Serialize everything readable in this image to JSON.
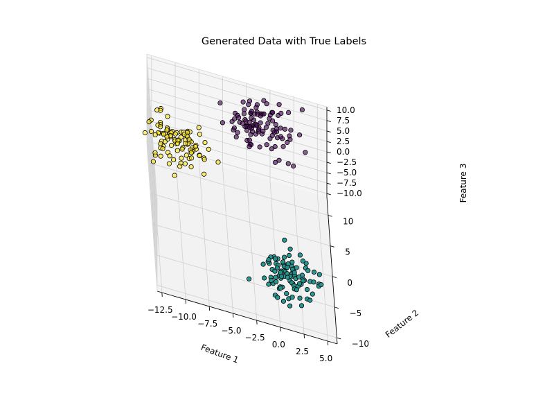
{
  "chart_data": {
    "type": "scatter",
    "projection": "3d",
    "title": "Generated Data with True Labels",
    "xlabel": "Feature 1",
    "ylabel": "Feature 2",
    "zlabel": "Feature 3",
    "xlim": [
      -13,
      6
    ],
    "ylim": [
      -11,
      13
    ],
    "zlim": [
      -10.8,
      10.8
    ],
    "xticks": [
      -12.5,
      -10.0,
      -7.5,
      -5.0,
      -2.5,
      0.0,
      2.5,
      5.0
    ],
    "xtick_labels": [
      "−12.5",
      "−10.0",
      "−7.5",
      "−5.0",
      "−2.5",
      "0.0",
      "2.5",
      "5.0"
    ],
    "yticks": [
      -10,
      -5,
      0,
      5,
      10
    ],
    "ytick_labels": [
      "−10",
      "−5",
      "0",
      "5",
      "10"
    ],
    "zticks": [
      -10.0,
      -7.5,
      -5.0,
      -2.5,
      0.0,
      2.5,
      5.0,
      7.5,
      10.0
    ],
    "ztick_labels": [
      "−10.0",
      "−7.5",
      "−5.0",
      "−2.5",
      "0.0",
      "2.5",
      "5.0",
      "7.5",
      "10.0"
    ],
    "grid": true,
    "colormap": "viridis",
    "marker_edge_color": "#000000",
    "series": [
      {
        "color": "#440154",
        "center": [
          -1.0,
          9.0,
          7.0
        ],
        "spread": [
          1.9,
          2.0,
          1.5
        ],
        "count": 100,
        "seed": 11
      },
      {
        "color": "#21918c",
        "center": [
          1.0,
          -5.0,
          -7.0
        ],
        "spread": [
          1.6,
          1.6,
          1.6
        ],
        "count": 100,
        "seed": 23
      },
      {
        "color": "#fde725",
        "center": [
          -10.0,
          3.0,
          6.0
        ],
        "spread": [
          1.7,
          1.7,
          1.5
        ],
        "count": 100,
        "seed": 37
      }
    ]
  }
}
